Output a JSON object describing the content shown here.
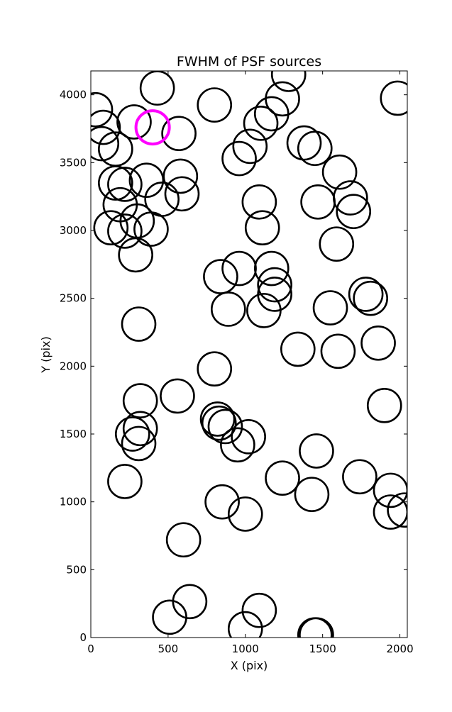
{
  "chart_data": {
    "type": "scatter",
    "title": "FWHM of PSF sources",
    "xlabel": "X (pix)",
    "ylabel": "Y (pix)",
    "xlim": [
      0,
      2048
    ],
    "ylim": [
      0,
      4176
    ],
    "xticks": [
      0,
      500,
      1000,
      1500,
      2000
    ],
    "yticks": [
      0,
      500,
      1000,
      1500,
      2000,
      2500,
      3000,
      3500,
      4000
    ],
    "grid": false,
    "marker": "circle-outline",
    "marker_radius_units": 108,
    "colors": {
      "sources": "#000000",
      "highlight": "#ff00ff"
    },
    "series": [
      {
        "points": [
          [
            1280,
            4150
          ],
          [
            430,
            4050
          ],
          [
            1985,
            3975
          ],
          [
            30,
            3890
          ],
          [
            1240,
            3970
          ],
          [
            800,
            3925
          ],
          [
            80,
            3760
          ],
          [
            280,
            3800
          ],
          [
            570,
            3715
          ],
          [
            1170,
            3860
          ],
          [
            1100,
            3790
          ],
          [
            70,
            3640
          ],
          [
            160,
            3600
          ],
          [
            1380,
            3645
          ],
          [
            1450,
            3605
          ],
          [
            1030,
            3620
          ],
          [
            960,
            3530
          ],
          [
            580,
            3400
          ],
          [
            1610,
            3430
          ],
          [
            220,
            3340
          ],
          [
            160,
            3350
          ],
          [
            360,
            3370
          ],
          [
            1680,
            3240
          ],
          [
            590,
            3270
          ],
          [
            460,
            3230
          ],
          [
            1470,
            3210
          ],
          [
            1090,
            3210
          ],
          [
            190,
            3190
          ],
          [
            1700,
            3140
          ],
          [
            300,
            3070
          ],
          [
            390,
            3010
          ],
          [
            130,
            3020
          ],
          [
            220,
            2995
          ],
          [
            1110,
            3020
          ],
          [
            1590,
            2900
          ],
          [
            290,
            2820
          ],
          [
            960,
            2720
          ],
          [
            1170,
            2720
          ],
          [
            840,
            2660
          ],
          [
            1190,
            2600
          ],
          [
            1190,
            2530
          ],
          [
            1780,
            2530
          ],
          [
            1810,
            2500
          ],
          [
            1120,
            2410
          ],
          [
            890,
            2420
          ],
          [
            1550,
            2430
          ],
          [
            310,
            2310
          ],
          [
            1860,
            2170
          ],
          [
            1340,
            2125
          ],
          [
            1600,
            2110
          ],
          [
            800,
            1980
          ],
          [
            560,
            1780
          ],
          [
            320,
            1745
          ],
          [
            1900,
            1710
          ],
          [
            820,
            1610
          ],
          [
            830,
            1580
          ],
          [
            870,
            1555
          ],
          [
            320,
            1540
          ],
          [
            270,
            1500
          ],
          [
            1020,
            1480
          ],
          [
            950,
            1420
          ],
          [
            310,
            1430
          ],
          [
            1460,
            1375
          ],
          [
            1740,
            1185
          ],
          [
            220,
            1150
          ],
          [
            1240,
            1175
          ],
          [
            1940,
            1085
          ],
          [
            1430,
            1055
          ],
          [
            850,
            1000
          ],
          [
            1000,
            910
          ],
          [
            1940,
            925
          ],
          [
            2030,
            940
          ],
          [
            600,
            720
          ],
          [
            640,
            265
          ],
          [
            510,
            150
          ],
          [
            1090,
            200
          ],
          [
            1000,
            65
          ],
          [
            1460,
            20
          ],
          [
            1450,
            20
          ]
        ]
      },
      {
        "points": [
          [
            400,
            3760
          ]
        ]
      }
    ]
  }
}
